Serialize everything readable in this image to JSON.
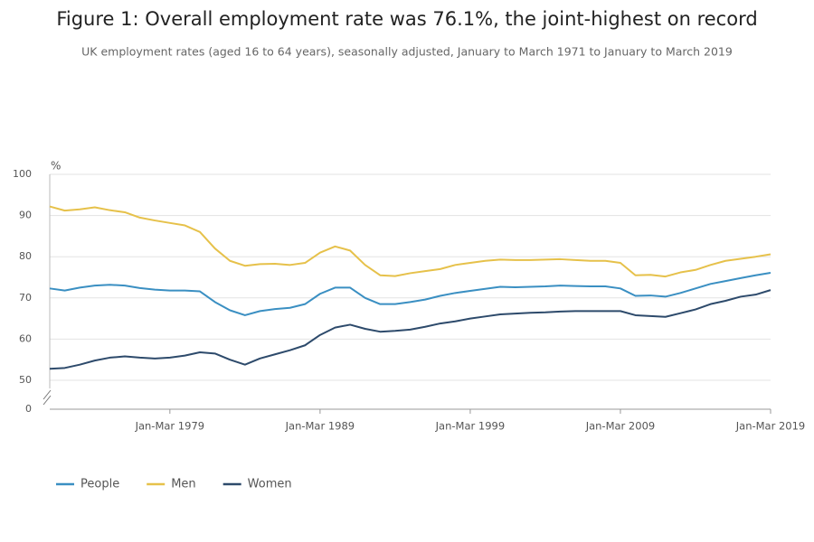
{
  "chart_data": {
    "type": "line",
    "title": "Figure 1: Overall employment rate was 76.1%, the joint-highest on record",
    "subtitle": "UK employment rates (aged 16 to 64 years), seasonally adjusted, January to March 1971 to January to March 2019",
    "y_unit": "%",
    "x": [
      1971,
      1972,
      1973,
      1974,
      1975,
      1976,
      1977,
      1978,
      1979,
      1980,
      1981,
      1982,
      1983,
      1984,
      1985,
      1986,
      1987,
      1988,
      1989,
      1990,
      1991,
      1992,
      1993,
      1994,
      1995,
      1996,
      1997,
      1998,
      1999,
      2000,
      2001,
      2002,
      2003,
      2004,
      2005,
      2006,
      2007,
      2008,
      2009,
      2010,
      2011,
      2012,
      2013,
      2014,
      2015,
      2016,
      2017,
      2018,
      2019
    ],
    "series": [
      {
        "name": "People",
        "color": "#3a8fc2",
        "values": [
          72.3,
          71.8,
          72.5,
          73,
          73.2,
          73,
          72.4,
          72,
          71.8,
          71.8,
          71.6,
          69,
          67,
          65.8,
          66.8,
          67.3,
          67.6,
          68.5,
          71,
          72.5,
          72.5,
          70,
          68.5,
          68.5,
          69,
          69.6,
          70.5,
          71.2,
          71.7,
          72.2,
          72.7,
          72.6,
          72.7,
          72.8,
          73,
          72.9,
          72.8,
          72.8,
          72.3,
          70.5,
          70.6,
          70.3,
          71.2,
          72.3,
          73.4,
          74.1,
          74.8,
          75.5,
          76.1
        ]
      },
      {
        "name": "Men",
        "color": "#e6c14a",
        "values": [
          92.2,
          91.2,
          91.5,
          92,
          91.3,
          90.8,
          89.5,
          88.8,
          88.2,
          87.6,
          86,
          82,
          79,
          77.8,
          78.2,
          78.3,
          78,
          78.5,
          81,
          82.5,
          81.5,
          78,
          75.5,
          75.3,
          76,
          76.5,
          77,
          78,
          78.5,
          79,
          79.3,
          79.2,
          79.2,
          79.3,
          79.4,
          79.2,
          79,
          79,
          78.5,
          75.5,
          75.6,
          75.2,
          76.2,
          76.8,
          78,
          79,
          79.5,
          80,
          80.6
        ]
      },
      {
        "name": "Women",
        "color": "#2d4a6b",
        "values": [
          52.8,
          53,
          53.8,
          54.8,
          55.5,
          55.8,
          55.5,
          55.3,
          55.5,
          56,
          56.8,
          56.5,
          55,
          53.8,
          55.3,
          56.3,
          57.3,
          58.5,
          61,
          62.8,
          63.5,
          62.5,
          61.8,
          62,
          62.3,
          63,
          63.8,
          64.3,
          65,
          65.5,
          66,
          66.2,
          66.4,
          66.5,
          66.7,
          66.8,
          66.8,
          66.8,
          66.8,
          65.8,
          65.6,
          65.4,
          66.3,
          67.2,
          68.5,
          69.3,
          70.3,
          70.8,
          71.9
        ]
      }
    ],
    "xlim": [
      1971,
      2019
    ],
    "xticks": [
      {
        "value": 1979,
        "label": "Jan-Mar 1979"
      },
      {
        "value": 1989,
        "label": "Jan-Mar 1989"
      },
      {
        "value": 1999,
        "label": "Jan-Mar 1999"
      },
      {
        "value": 2009,
        "label": "Jan-Mar 2009"
      },
      {
        "value": 2019,
        "label": "Jan-Mar 2019"
      }
    ],
    "ylim": [
      0,
      100
    ],
    "y_axis_break": [
      0,
      50
    ],
    "yticks": [
      0,
      50,
      60,
      70,
      80,
      90,
      100
    ],
    "grid": true,
    "legend": "bottom"
  }
}
